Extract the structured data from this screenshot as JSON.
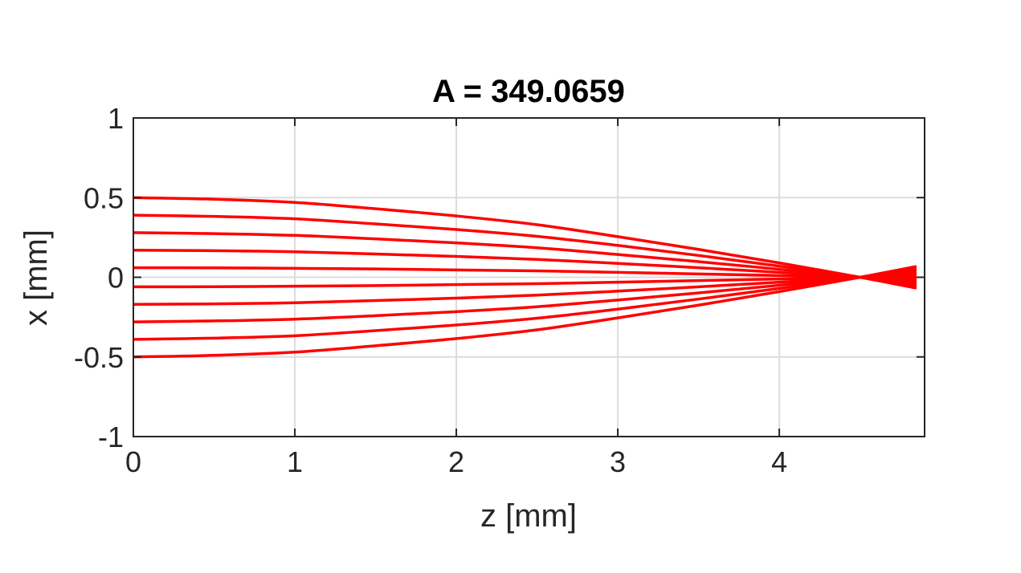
{
  "chart_data": {
    "type": "line",
    "title": "A = 349.0659",
    "xlabel": "z [mm]",
    "ylabel": "x [mm]",
    "xlim": [
      0,
      4.9
    ],
    "ylim": [
      -1,
      1
    ],
    "xticks": [
      0,
      1,
      2,
      3,
      4
    ],
    "xtick_labels": [
      "0",
      "1",
      "2",
      "3",
      "4"
    ],
    "yticks": [
      -1,
      -0.5,
      0,
      0.5,
      1
    ],
    "ytick_labels": [
      "-1",
      "-0.5",
      "0",
      "0.5",
      "1"
    ],
    "grid": true,
    "line_color": "#ff0000",
    "x": [
      0,
      0.5,
      1,
      1.5,
      2,
      2.5,
      3,
      3.5,
      4,
      4.5,
      4.85
    ],
    "series": [
      {
        "values": [
          0.5,
          0.49,
          0.47,
          0.43,
          0.385,
          0.33,
          0.255,
          0.175,
          0.09,
          0.0,
          -0.068
        ]
      },
      {
        "values": [
          0.39,
          0.382,
          0.367,
          0.335,
          0.3,
          0.257,
          0.2,
          0.137,
          0.07,
          0.0,
          -0.053
        ]
      },
      {
        "values": [
          0.28,
          0.274,
          0.263,
          0.241,
          0.216,
          0.185,
          0.143,
          0.098,
          0.05,
          0.0,
          -0.038
        ]
      },
      {
        "values": [
          0.17,
          0.167,
          0.16,
          0.146,
          0.131,
          0.112,
          0.087,
          0.06,
          0.031,
          0.0,
          -0.023
        ]
      },
      {
        "values": [
          0.06,
          0.059,
          0.056,
          0.052,
          0.046,
          0.04,
          0.031,
          0.021,
          0.011,
          0.0,
          -0.008
        ]
      },
      {
        "values": [
          -0.06,
          -0.059,
          -0.056,
          -0.052,
          -0.046,
          -0.04,
          -0.031,
          -0.021,
          -0.011,
          0.0,
          0.008
        ]
      },
      {
        "values": [
          -0.17,
          -0.167,
          -0.16,
          -0.146,
          -0.131,
          -0.112,
          -0.087,
          -0.06,
          -0.031,
          0.0,
          0.023
        ]
      },
      {
        "values": [
          -0.28,
          -0.274,
          -0.263,
          -0.241,
          -0.216,
          -0.185,
          -0.143,
          -0.098,
          -0.05,
          0.0,
          0.038
        ]
      },
      {
        "values": [
          -0.39,
          -0.382,
          -0.367,
          -0.335,
          -0.3,
          -0.257,
          -0.2,
          -0.137,
          -0.07,
          0.0,
          0.053
        ]
      },
      {
        "values": [
          -0.5,
          -0.49,
          -0.47,
          -0.43,
          -0.385,
          -0.33,
          -0.255,
          -0.175,
          -0.09,
          0.0,
          0.068
        ]
      }
    ]
  }
}
